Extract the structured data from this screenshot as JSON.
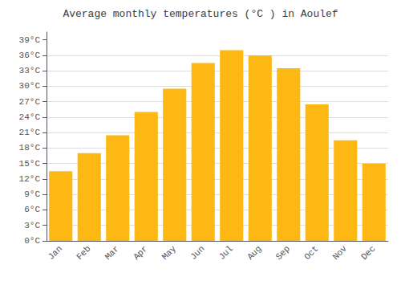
{
  "chart_data": {
    "type": "bar",
    "title": "Average monthly temperatures (°C ) in Aoulef",
    "categories": [
      "Jan",
      "Feb",
      "Mar",
      "Apr",
      "May",
      "Jun",
      "Jul",
      "Aug",
      "Sep",
      "Oct",
      "Nov",
      "Dec"
    ],
    "values": [
      13.5,
      17.0,
      20.5,
      25.0,
      29.5,
      34.5,
      37.0,
      36.0,
      33.5,
      26.5,
      19.5,
      15.0
    ],
    "color": "#FDB813",
    "ylim": [
      0,
      40.5
    ],
    "yticks": [
      {
        "value": 0,
        "label": "0°C"
      },
      {
        "value": 3,
        "label": "3°C"
      },
      {
        "value": 6,
        "label": "6°C"
      },
      {
        "value": 9,
        "label": "9°C"
      },
      {
        "value": 12,
        "label": "12°C"
      },
      {
        "value": 15,
        "label": "15°C"
      },
      {
        "value": 18,
        "label": "18°C"
      },
      {
        "value": 21,
        "label": "21°C"
      },
      {
        "value": 24,
        "label": "24°C"
      },
      {
        "value": 27,
        "label": "27°C"
      },
      {
        "value": 30,
        "label": "30°C"
      },
      {
        "value": 33,
        "label": "33°C"
      },
      {
        "value": 36,
        "label": "36°C"
      },
      {
        "value": 39,
        "label": "39°C"
      }
    ],
    "grid": true
  }
}
